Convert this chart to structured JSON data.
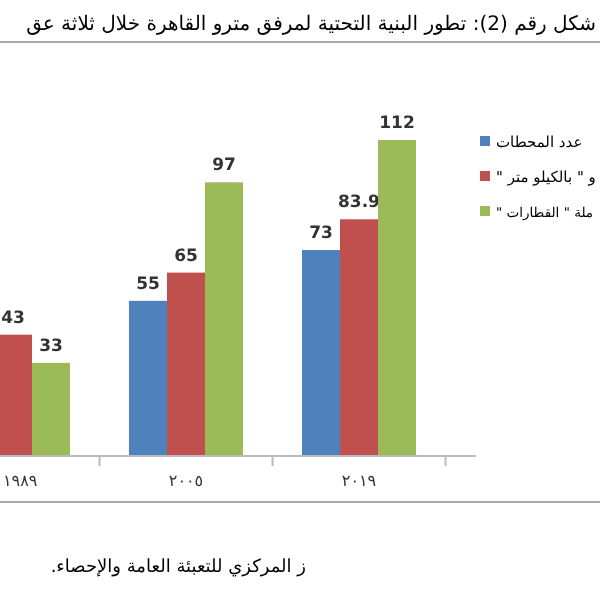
{
  "chart_data": {
    "type": "bar",
    "title": "شكل رقم (2): تطور البنية التحتية لمرفق مترو القاهرة خلال ثلاثة عق",
    "categories": [
      "١٩٨٩",
      "٢٠٠٥",
      "٢٠١٩"
    ],
    "series": [
      {
        "name": "عدد المحطات",
        "color": "#4f81bd",
        "values": [
          null,
          55,
          73
        ]
      },
      {
        "name": "و \" بالكيلو متر \"",
        "color": "#c0504d",
        "values": [
          43,
          65,
          83.9
        ]
      },
      {
        "name": "ملة \" القطارات \"",
        "color": "#9bbb59",
        "values": [
          33,
          97,
          112
        ]
      }
    ],
    "data_labels": true,
    "legend": "right",
    "annotations": [
      "ز المركزي للتعبئة العامة والإحصاء."
    ]
  }
}
